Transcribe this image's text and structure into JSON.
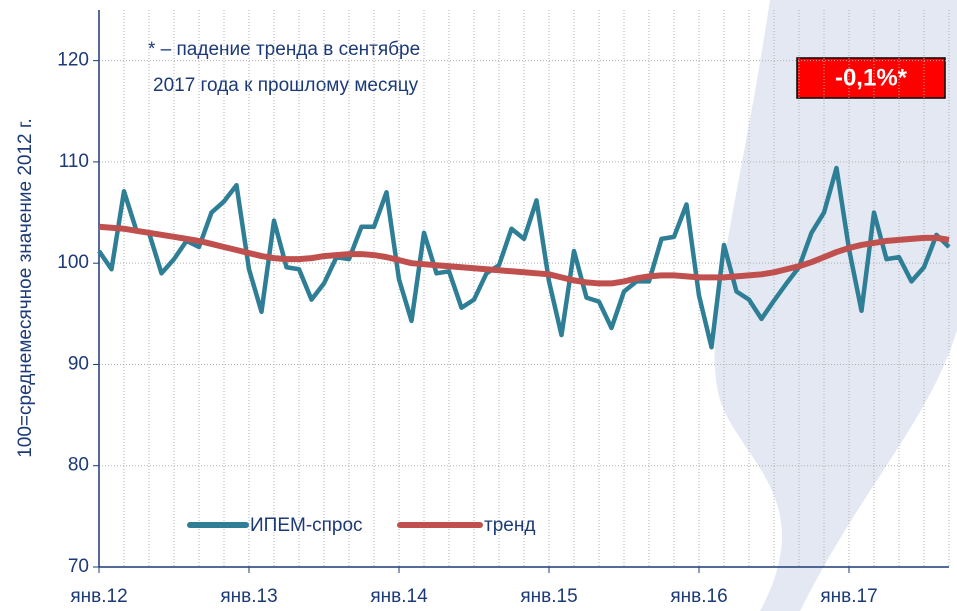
{
  "chart_data": {
    "type": "line",
    "y_label": "100=среднемесячное значение 2012 г.",
    "annotation": [
      "* – падение тренда в сентябре",
      "2017 года к прошлому месяцу"
    ],
    "badge": "-0,1%*",
    "categories": [
      "янв.12",
      null,
      null,
      null,
      null,
      null,
      null,
      null,
      null,
      null,
      null,
      null,
      "янв.13",
      null,
      null,
      null,
      null,
      null,
      null,
      null,
      null,
      null,
      null,
      null,
      "янв.14",
      null,
      null,
      null,
      null,
      null,
      null,
      null,
      null,
      null,
      null,
      null,
      "янв.15",
      null,
      null,
      null,
      null,
      null,
      null,
      null,
      null,
      null,
      null,
      null,
      "янв.16",
      null,
      null,
      null,
      null,
      null,
      null,
      null,
      null,
      null,
      null,
      null,
      "янв.17",
      null,
      null,
      null,
      null,
      null,
      null,
      null,
      null
    ],
    "series": [
      {
        "name": "ИПЕМ-спрос",
        "color": "#2e7f96",
        "values": [
          101.2,
          99.4,
          107.1,
          103.2,
          103.0,
          99.0,
          100.4,
          102.2,
          101.6,
          105.0,
          106.1,
          107.7,
          99.4,
          95.2,
          104.2,
          99.6,
          99.4,
          96.4,
          98.0,
          100.6,
          100.4,
          103.6,
          103.6,
          107.0,
          98.4,
          94.3,
          103.0,
          99.0,
          99.2,
          95.6,
          96.4,
          99.0,
          99.8,
          103.4,
          102.4,
          106.2,
          98.2,
          92.9,
          101.2,
          96.6,
          96.2,
          93.6,
          97.2,
          98.2,
          98.2,
          102.4,
          102.6,
          105.8,
          96.8,
          91.7,
          101.8,
          97.2,
          96.4,
          94.5,
          96.3,
          98.0,
          99.6,
          103.0,
          105.0,
          109.4,
          101.4,
          95.3,
          105.0,
          100.4,
          100.6,
          98.2,
          99.6,
          102.8,
          101.6
        ]
      },
      {
        "name": "тренд",
        "color": "#c0504d",
        "values": [
          103.6,
          103.5,
          103.4,
          103.2,
          103.0,
          102.8,
          102.6,
          102.4,
          102.2,
          101.9,
          101.6,
          101.3,
          101.0,
          100.7,
          100.5,
          100.4,
          100.4,
          100.5,
          100.7,
          100.8,
          100.9,
          100.9,
          100.8,
          100.6,
          100.3,
          100.0,
          99.9,
          99.8,
          99.7,
          99.6,
          99.5,
          99.4,
          99.3,
          99.2,
          99.1,
          99.0,
          98.9,
          98.6,
          98.3,
          98.1,
          98.0,
          98.0,
          98.2,
          98.5,
          98.7,
          98.8,
          98.8,
          98.7,
          98.6,
          98.6,
          98.6,
          98.7,
          98.8,
          98.9,
          99.1,
          99.4,
          99.7,
          100.1,
          100.6,
          101.1,
          101.5,
          101.8,
          102.0,
          102.2,
          102.3,
          102.4,
          102.5,
          102.5,
          102.3
        ]
      }
    ],
    "ylim": [
      70,
      125
    ],
    "yticks": [
      70,
      80,
      90,
      100,
      110,
      120
    ],
    "grid": true
  }
}
